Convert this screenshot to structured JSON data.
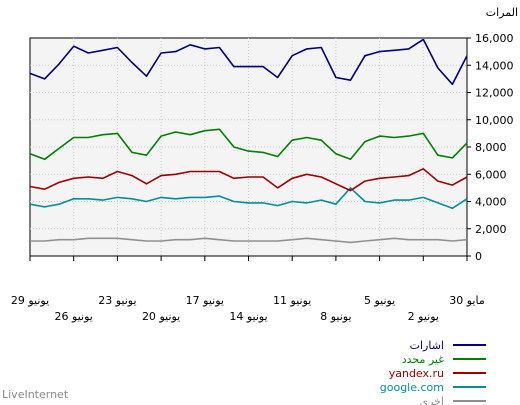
{
  "footer": "LiveInternet",
  "chart_data": {
    "type": "line",
    "ylabel": "المرات",
    "ylim": [
      0,
      16000
    ],
    "y_ticks": [
      "0",
      "2,000",
      "4,000",
      "6,000",
      "8,000",
      "10,000",
      "12,000",
      "14,000",
      "16,000"
    ],
    "x_tick_labels_row1": [
      "29 يونيو",
      "23 يونيو",
      "17 يونيو",
      "11 يونيو",
      "5 يونيو",
      "30 مايو"
    ],
    "x_tick_labels_row2": [
      "26 يونيو",
      "20 يونيو",
      "14 يونيو",
      "8 يونيو",
      "2 يونيو"
    ],
    "x_order": "reverse-chronological (30 May at right, 29 June at left)",
    "grid": true,
    "legend_position": "bottom-right",
    "series": [
      {
        "name": "اشارات",
        "color": "#000080",
        "values": [
          13400,
          13000,
          14100,
          15400,
          14900,
          15100,
          15300,
          14200,
          13200,
          14900,
          15000,
          15500,
          15200,
          15300,
          13900,
          13900,
          13900,
          13100,
          14700,
          15200,
          15300,
          13100,
          12900,
          14700,
          15000,
          15100,
          15200,
          15900,
          13800,
          12600,
          14700
        ]
      },
      {
        "name": "غير محدد",
        "color": "#008000",
        "values": [
          7500,
          7100,
          7900,
          8700,
          8700,
          8900,
          9000,
          7600,
          7400,
          8800,
          9100,
          8900,
          9200,
          9300,
          8000,
          7700,
          7600,
          7300,
          8500,
          8700,
          8500,
          7500,
          7100,
          8400,
          8800,
          8700,
          8800,
          9000,
          7400,
          7200,
          8300
        ]
      },
      {
        "name": "yandex.ru",
        "color": "#a00000",
        "values": [
          5100,
          4900,
          5400,
          5700,
          5800,
          5700,
          6200,
          5900,
          5300,
          5900,
          6000,
          6200,
          6200,
          6200,
          5700,
          5800,
          5800,
          5000,
          5700,
          6000,
          5800,
          5300,
          4800,
          5500,
          5700,
          5800,
          5900,
          6400,
          5500,
          5200,
          5800
        ]
      },
      {
        "name": "google.com",
        "color": "#00909c",
        "values": [
          3800,
          3600,
          3800,
          4200,
          4200,
          4100,
          4300,
          4200,
          4000,
          4300,
          4200,
          4300,
          4300,
          4400,
          4000,
          3900,
          3900,
          3700,
          4000,
          3900,
          4100,
          3800,
          5000,
          4000,
          3900,
          4100,
          4100,
          4300,
          3900,
          3500,
          4200
        ]
      },
      {
        "name": "اخرى",
        "color": "#909090",
        "values": [
          1100,
          1100,
          1200,
          1200,
          1300,
          1300,
          1300,
          1200,
          1100,
          1100,
          1200,
          1200,
          1300,
          1200,
          1100,
          1100,
          1100,
          1100,
          1200,
          1300,
          1200,
          1100,
          1000,
          1100,
          1200,
          1300,
          1200,
          1200,
          1200,
          1100,
          1200
        ]
      }
    ]
  }
}
